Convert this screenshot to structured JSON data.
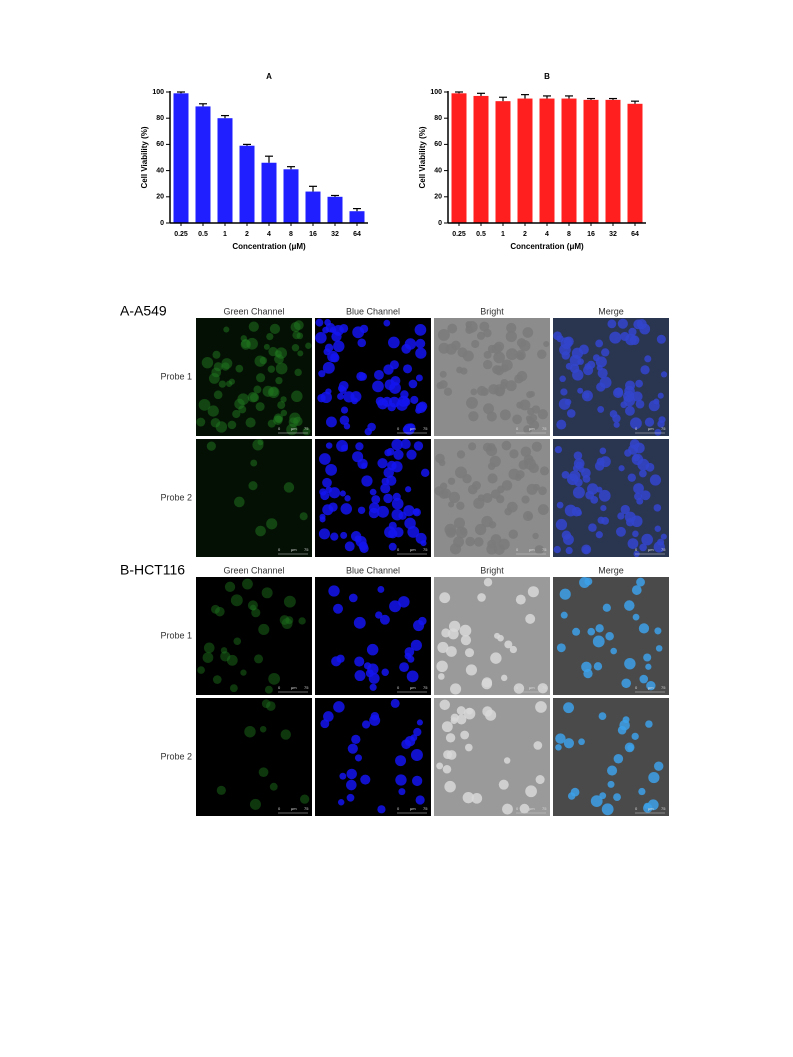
{
  "chart_data": [
    {
      "type": "bar",
      "title": "A",
      "x_label": "Concentration (μM)",
      "y_label": "Cell Viability (%)",
      "categories": [
        "0.25",
        "0.5",
        "1",
        "2",
        "4",
        "8",
        "16",
        "32",
        "64"
      ],
      "values": [
        99,
        89,
        80,
        59,
        46,
        41,
        24,
        20,
        9
      ],
      "errors": [
        1,
        2,
        2,
        1,
        5,
        2,
        4,
        1,
        2
      ],
      "color": "#1f1fff",
      "ylim": [
        0,
        100
      ],
      "yticks": [
        0,
        20,
        40,
        60,
        80,
        100
      ]
    },
    {
      "type": "bar",
      "title": "B",
      "x_label": "Concentration (μM)",
      "y_label": "Cell Viability (%)",
      "categories": [
        "0.25",
        "0.5",
        "1",
        "2",
        "4",
        "8",
        "16",
        "32",
        "64"
      ],
      "values": [
        99,
        97,
        93,
        95,
        95,
        95,
        94,
        94,
        91
      ],
      "errors": [
        1,
        2,
        3,
        3,
        2,
        2,
        1,
        1,
        2
      ],
      "color": "#ff1f1f",
      "ylim": [
        0,
        100
      ],
      "yticks": [
        0,
        20,
        40,
        60,
        80,
        100
      ]
    }
  ],
  "figure": {
    "columns": [
      "Green Channel",
      "Blue Channel",
      "Bright",
      "Merge"
    ],
    "scale_bar": {
      "start": "0",
      "unit": "μm",
      "end": "75"
    },
    "sections": [
      {
        "title": "A-A549",
        "rows": [
          "Probe 1",
          "Probe 2"
        ]
      },
      {
        "title": "B-HCT116",
        "rows": [
          "Probe 1",
          "Probe 2"
        ]
      }
    ]
  }
}
